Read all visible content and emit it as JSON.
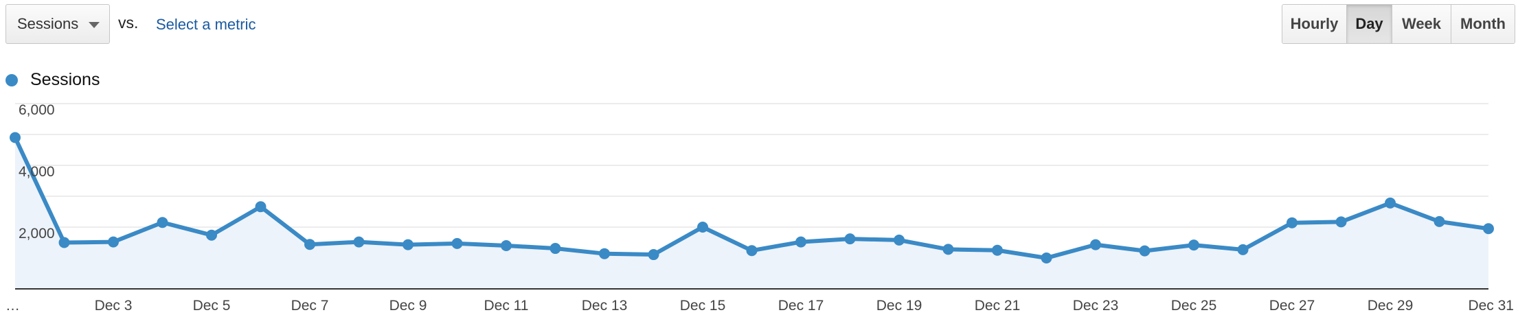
{
  "controls": {
    "metric_select": "Sessions",
    "vs_label": "vs.",
    "select_metric_link": "Select a metric",
    "granularity": [
      {
        "label": "Hourly",
        "active": false
      },
      {
        "label": "Day",
        "active": true
      },
      {
        "label": "Week",
        "active": false
      },
      {
        "label": "Month",
        "active": false
      }
    ]
  },
  "colors": {
    "series": "#3a8ac6",
    "area_fill": "#edf3fa",
    "gridline": "#e6e6e6",
    "axis": "#333333"
  },
  "chart_data": {
    "type": "line",
    "title": "",
    "xlabel": "",
    "ylabel": "",
    "ylim": [
      0,
      6000
    ],
    "y_ticks": [
      2000,
      4000,
      6000
    ],
    "y_tick_labels": [
      "2,000",
      "4,000",
      "6,000"
    ],
    "x_tick_labels": [
      "…",
      "Dec 3",
      "Dec 5",
      "Dec 7",
      "Dec 9",
      "Dec 11",
      "Dec 13",
      "Dec 15",
      "Dec 17",
      "Dec 19",
      "Dec 21",
      "Dec 23",
      "Dec 25",
      "Dec 27",
      "Dec 29",
      "Dec 31"
    ],
    "grid": true,
    "legend": "top-left",
    "series": [
      {
        "name": "Sessions",
        "x": [
          "Dec 1",
          "Dec 2",
          "Dec 3",
          "Dec 4",
          "Dec 5",
          "Dec 6",
          "Dec 7",
          "Dec 8",
          "Dec 9",
          "Dec 10",
          "Dec 11",
          "Dec 12",
          "Dec 13",
          "Dec 14",
          "Dec 15",
          "Dec 16",
          "Dec 17",
          "Dec 18",
          "Dec 19",
          "Dec 20",
          "Dec 21",
          "Dec 22",
          "Dec 23",
          "Dec 24",
          "Dec 25",
          "Dec 26",
          "Dec 27",
          "Dec 28",
          "Dec 29",
          "Dec 30",
          "Dec 31"
        ],
        "values": [
          5300,
          1900,
          1920,
          2550,
          2140,
          3060,
          1840,
          1920,
          1830,
          1870,
          1800,
          1710,
          1540,
          1510,
          2400,
          1640,
          1920,
          2020,
          1980,
          1680,
          1650,
          1400,
          1830,
          1630,
          1820,
          1670,
          2540,
          2570,
          3180,
          2580,
          2350
        ]
      }
    ]
  }
}
